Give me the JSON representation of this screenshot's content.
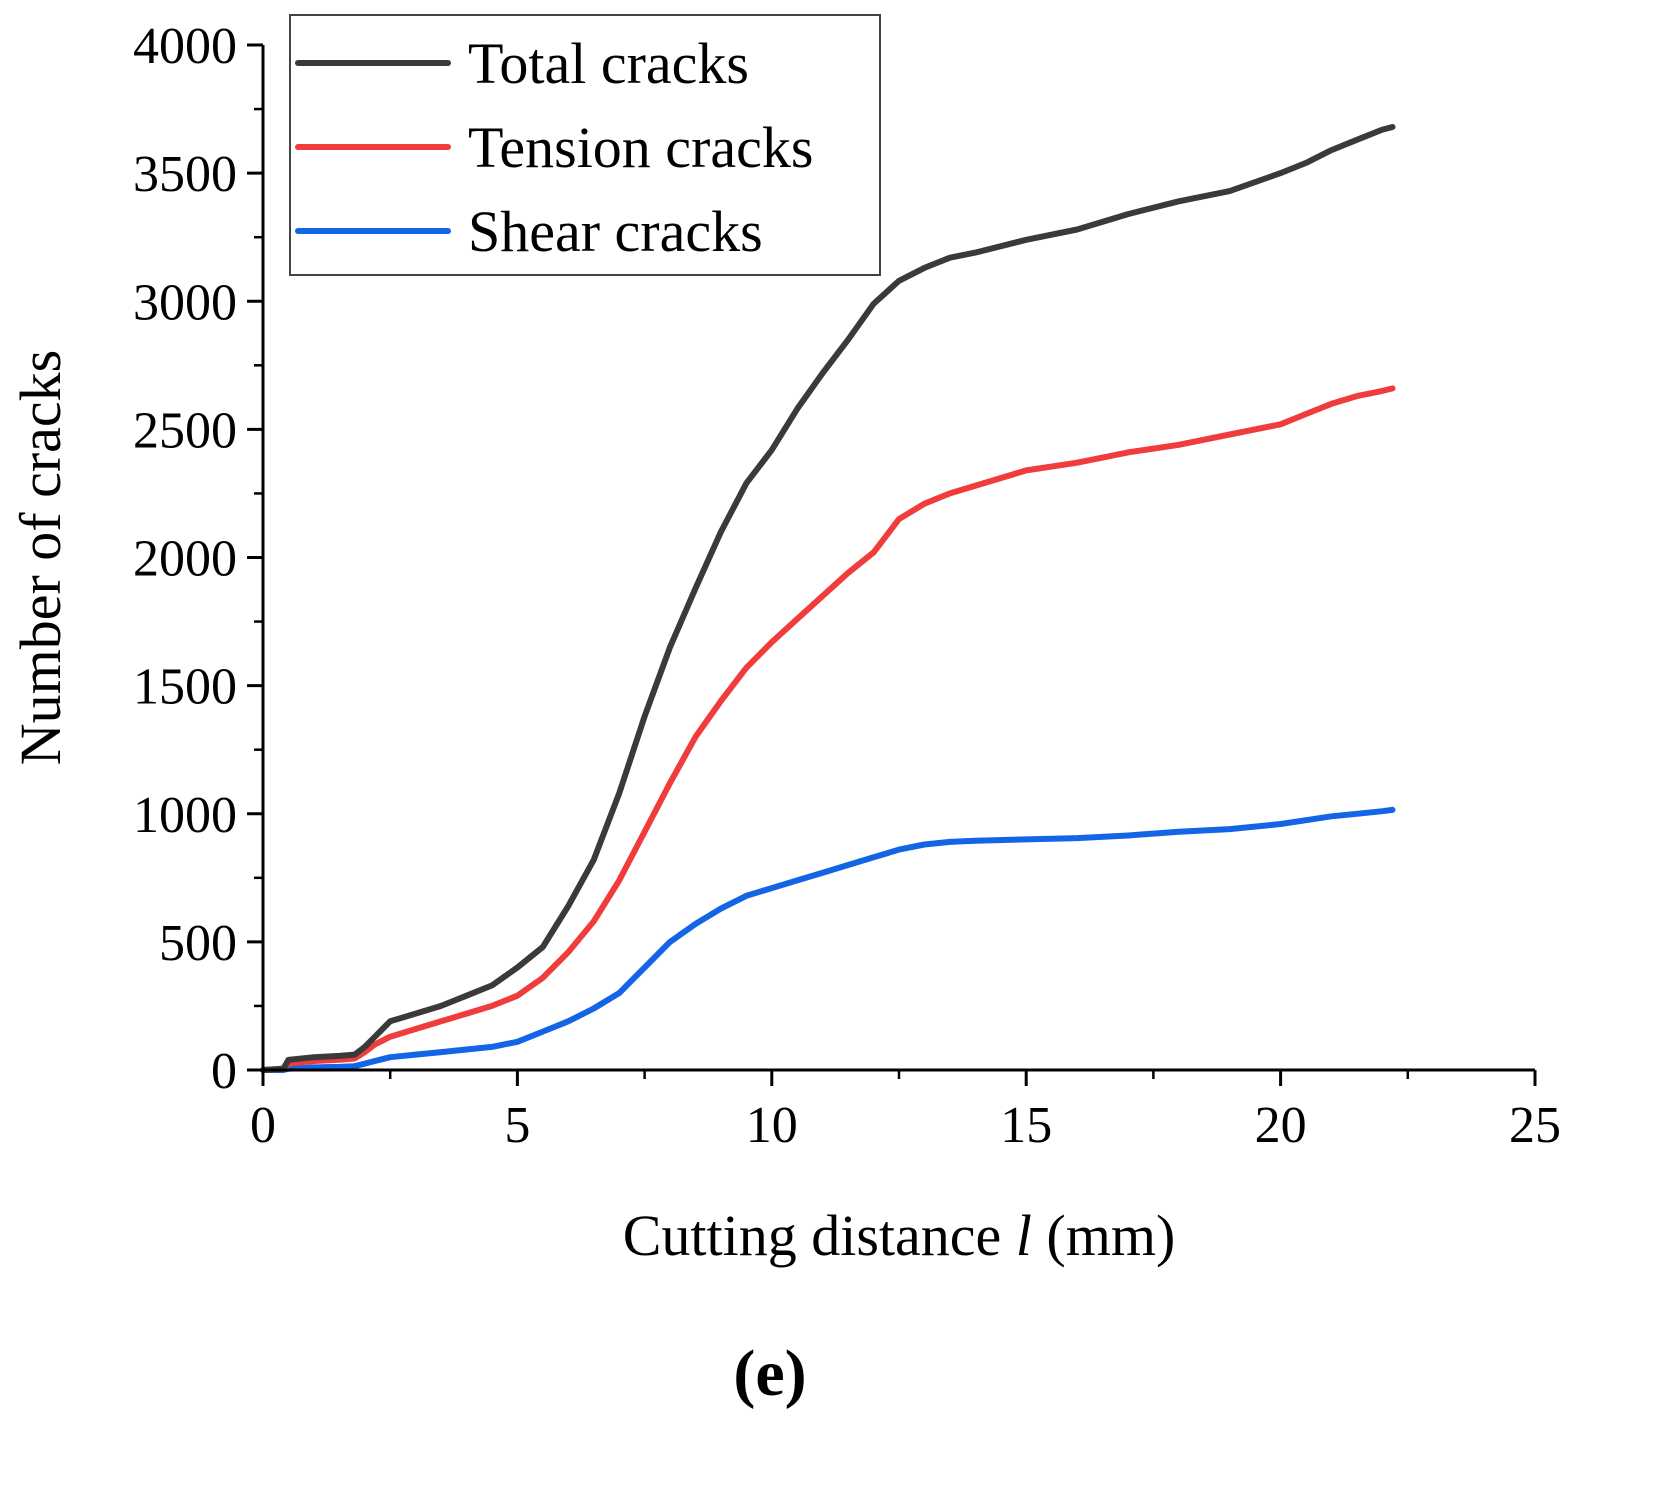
{
  "chart_data": {
    "type": "line",
    "title": "",
    "xlabel_prefix": "Cutting distance ",
    "xlabel_var": "l",
    "xlabel_suffix": " (mm)",
    "ylabel": "Number of cracks",
    "xlim": [
      0,
      25
    ],
    "ylim": [
      0,
      4000
    ],
    "xticks": [
      0,
      5,
      10,
      15,
      20,
      25
    ],
    "yticks": [
      0,
      500,
      1000,
      1500,
      2000,
      2500,
      3000,
      3500,
      4000
    ],
    "grid": false,
    "legend_position": "top-left",
    "panel_label": "(e)",
    "series": [
      {
        "name": "Total cracks",
        "color": "#3a3a3a",
        "x": [
          0,
          0.4,
          0.5,
          1.0,
          1.5,
          1.8,
          2.0,
          2.2,
          2.5,
          3.0,
          3.5,
          4.0,
          4.5,
          5.0,
          5.5,
          6.0,
          6.5,
          7.0,
          7.5,
          8.0,
          8.5,
          9.0,
          9.5,
          10.0,
          10.5,
          11.0,
          11.5,
          12.0,
          12.5,
          13.0,
          13.5,
          14.0,
          15.0,
          16.0,
          17.0,
          18.0,
          19.0,
          20.0,
          20.5,
          21.0,
          21.5,
          22.0,
          22.2
        ],
        "y": [
          0,
          5,
          40,
          50,
          55,
          60,
          90,
          130,
          190,
          220,
          250,
          290,
          330,
          400,
          480,
          640,
          820,
          1080,
          1380,
          1650,
          1880,
          2100,
          2290,
          2420,
          2580,
          2720,
          2850,
          2990,
          3080,
          3130,
          3170,
          3190,
          3240,
          3280,
          3340,
          3390,
          3430,
          3500,
          3540,
          3590,
          3630,
          3670,
          3680
        ]
      },
      {
        "name": "Tension cracks",
        "color": "#f03c3c",
        "x": [
          0,
          0.4,
          0.5,
          1.0,
          1.5,
          1.8,
          2.0,
          2.2,
          2.5,
          3.0,
          3.5,
          4.0,
          4.5,
          5.0,
          5.5,
          6.0,
          6.5,
          7.0,
          7.5,
          8.0,
          8.5,
          9.0,
          9.5,
          10.0,
          10.5,
          11.0,
          11.5,
          12.0,
          12.5,
          13.0,
          13.5,
          14.0,
          15.0,
          16.0,
          17.0,
          18.0,
          19.0,
          20.0,
          20.5,
          21.0,
          21.5,
          22.0,
          22.2
        ],
        "y": [
          0,
          5,
          25,
          35,
          40,
          45,
          70,
          100,
          130,
          160,
          190,
          220,
          250,
          290,
          360,
          460,
          580,
          740,
          930,
          1120,
          1300,
          1440,
          1570,
          1670,
          1760,
          1850,
          1940,
          2020,
          2150,
          2210,
          2250,
          2280,
          2340,
          2370,
          2410,
          2440,
          2480,
          2520,
          2560,
          2600,
          2630,
          2650,
          2660
        ]
      },
      {
        "name": "Shear cracks",
        "color": "#1464e6",
        "x": [
          0,
          0.4,
          0.5,
          1.0,
          1.5,
          1.8,
          2.0,
          2.2,
          2.5,
          3.0,
          3.5,
          4.0,
          4.5,
          5.0,
          5.5,
          6.0,
          6.5,
          7.0,
          7.5,
          8.0,
          8.5,
          9.0,
          9.5,
          10.0,
          10.5,
          11.0,
          11.5,
          12.0,
          12.5,
          13.0,
          13.5,
          14.0,
          15.0,
          16.0,
          17.0,
          18.0,
          19.0,
          20.0,
          20.5,
          21.0,
          21.5,
          22.0,
          22.2
        ],
        "y": [
          0,
          0,
          5,
          10,
          12,
          15,
          25,
          35,
          50,
          60,
          70,
          80,
          90,
          110,
          150,
          190,
          240,
          300,
          400,
          500,
          570,
          630,
          680,
          710,
          740,
          770,
          800,
          830,
          860,
          880,
          890,
          895,
          900,
          905,
          915,
          930,
          940,
          960,
          975,
          990,
          1000,
          1010,
          1015
        ]
      }
    ]
  }
}
